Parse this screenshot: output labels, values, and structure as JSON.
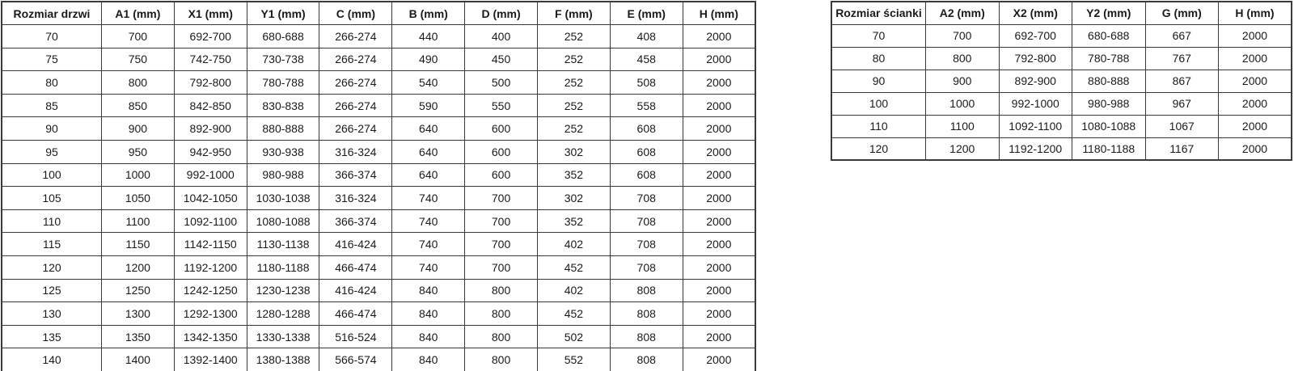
{
  "door_table": {
    "headers": [
      "Rozmiar drzwi",
      "A1 (mm)",
      "X1 (mm)",
      "Y1 (mm)",
      "C (mm)",
      "B (mm)",
      "D (mm)",
      "F (mm)",
      "E (mm)",
      "H (mm)"
    ],
    "rows": [
      [
        "70",
        "700",
        "692-700",
        "680-688",
        "266-274",
        "440",
        "400",
        "252",
        "408",
        "2000"
      ],
      [
        "75",
        "750",
        "742-750",
        "730-738",
        "266-274",
        "490",
        "450",
        "252",
        "458",
        "2000"
      ],
      [
        "80",
        "800",
        "792-800",
        "780-788",
        "266-274",
        "540",
        "500",
        "252",
        "508",
        "2000"
      ],
      [
        "85",
        "850",
        "842-850",
        "830-838",
        "266-274",
        "590",
        "550",
        "252",
        "558",
        "2000"
      ],
      [
        "90",
        "900",
        "892-900",
        "880-888",
        "266-274",
        "640",
        "600",
        "252",
        "608",
        "2000"
      ],
      [
        "95",
        "950",
        "942-950",
        "930-938",
        "316-324",
        "640",
        "600",
        "302",
        "608",
        "2000"
      ],
      [
        "100",
        "1000",
        "992-1000",
        "980-988",
        "366-374",
        "640",
        "600",
        "352",
        "608",
        "2000"
      ],
      [
        "105",
        "1050",
        "1042-1050",
        "1030-1038",
        "316-324",
        "740",
        "700",
        "302",
        "708",
        "2000"
      ],
      [
        "110",
        "1100",
        "1092-1100",
        "1080-1088",
        "366-374",
        "740",
        "700",
        "352",
        "708",
        "2000"
      ],
      [
        "115",
        "1150",
        "1142-1150",
        "1130-1138",
        "416-424",
        "740",
        "700",
        "402",
        "708",
        "2000"
      ],
      [
        "120",
        "1200",
        "1192-1200",
        "1180-1188",
        "466-474",
        "740",
        "700",
        "452",
        "708",
        "2000"
      ],
      [
        "125",
        "1250",
        "1242-1250",
        "1230-1238",
        "416-424",
        "840",
        "800",
        "402",
        "808",
        "2000"
      ],
      [
        "130",
        "1300",
        "1292-1300",
        "1280-1288",
        "466-474",
        "840",
        "800",
        "452",
        "808",
        "2000"
      ],
      [
        "135",
        "1350",
        "1342-1350",
        "1330-1338",
        "516-524",
        "840",
        "800",
        "502",
        "808",
        "2000"
      ],
      [
        "140",
        "1400",
        "1392-1400",
        "1380-1388",
        "566-574",
        "840",
        "800",
        "552",
        "808",
        "2000"
      ]
    ]
  },
  "wall_table": {
    "headers": [
      "Rozmiar ścianki",
      "A2 (mm)",
      "X2 (mm)",
      "Y2 (mm)",
      "G (mm)",
      "H (mm)"
    ],
    "rows": [
      [
        "70",
        "700",
        "692-700",
        "680-688",
        "667",
        "2000"
      ],
      [
        "80",
        "800",
        "792-800",
        "780-788",
        "767",
        "2000"
      ],
      [
        "90",
        "900",
        "892-900",
        "880-888",
        "867",
        "2000"
      ],
      [
        "100",
        "1000",
        "992-1000",
        "980-988",
        "967",
        "2000"
      ],
      [
        "110",
        "1100",
        "1092-1100",
        "1080-1088",
        "1067",
        "2000"
      ],
      [
        "120",
        "1200",
        "1192-1200",
        "1180-1188",
        "1167",
        "2000"
      ]
    ]
  },
  "chart_data": [
    {
      "type": "table",
      "title": "Rozmiar drzwi",
      "columns": [
        "Rozmiar drzwi",
        "A1 (mm)",
        "X1 (mm)",
        "Y1 (mm)",
        "C (mm)",
        "B (mm)",
        "D (mm)",
        "F (mm)",
        "E (mm)",
        "H (mm)"
      ],
      "rows": [
        [
          "70",
          "700",
          "692-700",
          "680-688",
          "266-274",
          "440",
          "400",
          "252",
          "408",
          "2000"
        ],
        [
          "75",
          "750",
          "742-750",
          "730-738",
          "266-274",
          "490",
          "450",
          "252",
          "458",
          "2000"
        ],
        [
          "80",
          "800",
          "792-800",
          "780-788",
          "266-274",
          "540",
          "500",
          "252",
          "508",
          "2000"
        ],
        [
          "85",
          "850",
          "842-850",
          "830-838",
          "266-274",
          "590",
          "550",
          "252",
          "558",
          "2000"
        ],
        [
          "90",
          "900",
          "892-900",
          "880-888",
          "266-274",
          "640",
          "600",
          "252",
          "608",
          "2000"
        ],
        [
          "95",
          "950",
          "942-950",
          "930-938",
          "316-324",
          "640",
          "600",
          "302",
          "608",
          "2000"
        ],
        [
          "100",
          "1000",
          "992-1000",
          "980-988",
          "366-374",
          "640",
          "600",
          "352",
          "608",
          "2000"
        ],
        [
          "105",
          "1050",
          "1042-1050",
          "1030-1038",
          "316-324",
          "740",
          "700",
          "302",
          "708",
          "2000"
        ],
        [
          "110",
          "1100",
          "1092-1100",
          "1080-1088",
          "366-374",
          "740",
          "700",
          "352",
          "708",
          "2000"
        ],
        [
          "115",
          "1150",
          "1142-1150",
          "1130-1138",
          "416-424",
          "740",
          "700",
          "402",
          "708",
          "2000"
        ],
        [
          "120",
          "1200",
          "1192-1200",
          "1180-1188",
          "466-474",
          "740",
          "700",
          "452",
          "708",
          "2000"
        ],
        [
          "125",
          "1250",
          "1242-1250",
          "1230-1238",
          "416-424",
          "840",
          "800",
          "402",
          "808",
          "2000"
        ],
        [
          "130",
          "1300",
          "1292-1300",
          "1280-1288",
          "466-474",
          "840",
          "800",
          "452",
          "808",
          "2000"
        ],
        [
          "135",
          "1350",
          "1342-1350",
          "1330-1338",
          "516-524",
          "840",
          "800",
          "502",
          "808",
          "2000"
        ],
        [
          "140",
          "1400",
          "1392-1400",
          "1380-1388",
          "566-574",
          "840",
          "800",
          "552",
          "808",
          "2000"
        ]
      ]
    },
    {
      "type": "table",
      "title": "Rozmiar ścianki",
      "columns": [
        "Rozmiar ścianki",
        "A2 (mm)",
        "X2 (mm)",
        "Y2 (mm)",
        "G (mm)",
        "H (mm)"
      ],
      "rows": [
        [
          "70",
          "700",
          "692-700",
          "680-688",
          "667",
          "2000"
        ],
        [
          "80",
          "800",
          "792-800",
          "780-788",
          "767",
          "2000"
        ],
        [
          "90",
          "900",
          "892-900",
          "880-888",
          "867",
          "2000"
        ],
        [
          "100",
          "1000",
          "992-1000",
          "980-988",
          "967",
          "2000"
        ],
        [
          "110",
          "1100",
          "1092-1100",
          "1080-1088",
          "1067",
          "2000"
        ],
        [
          "120",
          "1200",
          "1192-1200",
          "1180-1188",
          "1167",
          "2000"
        ]
      ]
    }
  ],
  "colors": {
    "background": "#ffffff",
    "border": "#3a3a3a",
    "text": "#1a1a1a"
  }
}
